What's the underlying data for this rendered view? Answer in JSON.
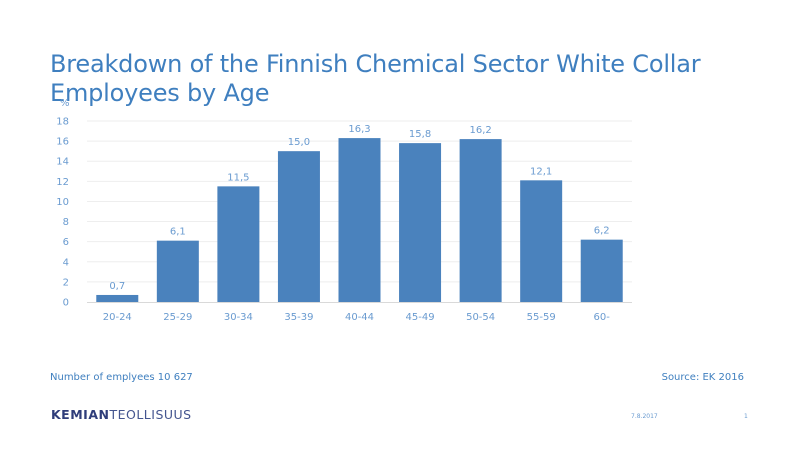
{
  "title": "Breakdown of the Finnish Chemical Sector White Collar Employees by Age",
  "chart_data": {
    "type": "bar",
    "ylabel": "%",
    "ylim": [
      0,
      18
    ],
    "yticks": [
      0,
      2,
      4,
      6,
      8,
      10,
      12,
      14,
      16,
      18
    ],
    "grid": true,
    "categories": [
      "20-24",
      "25-29",
      "30-34",
      "35-39",
      "40-44",
      "45-49",
      "50-54",
      "55-59",
      "60-"
    ],
    "values": [
      0.7,
      6.1,
      11.5,
      15.0,
      16.3,
      15.8,
      16.2,
      12.1,
      6.2
    ],
    "value_labels": [
      "0,7",
      "6,1",
      "11,5",
      "15,0",
      "16,3",
      "15,8",
      "16,2",
      "12,1",
      "6,2"
    ],
    "bar_color": "#4a82bd",
    "label_color": "#6a9bd0"
  },
  "footer": {
    "employees_note": "Number of emplyees 10 627",
    "source": "Source: EK 2016",
    "logo_bold": "KEMIAN",
    "logo_light": "TEOLLISUUS",
    "date": "7.8.2017",
    "page": "1"
  }
}
